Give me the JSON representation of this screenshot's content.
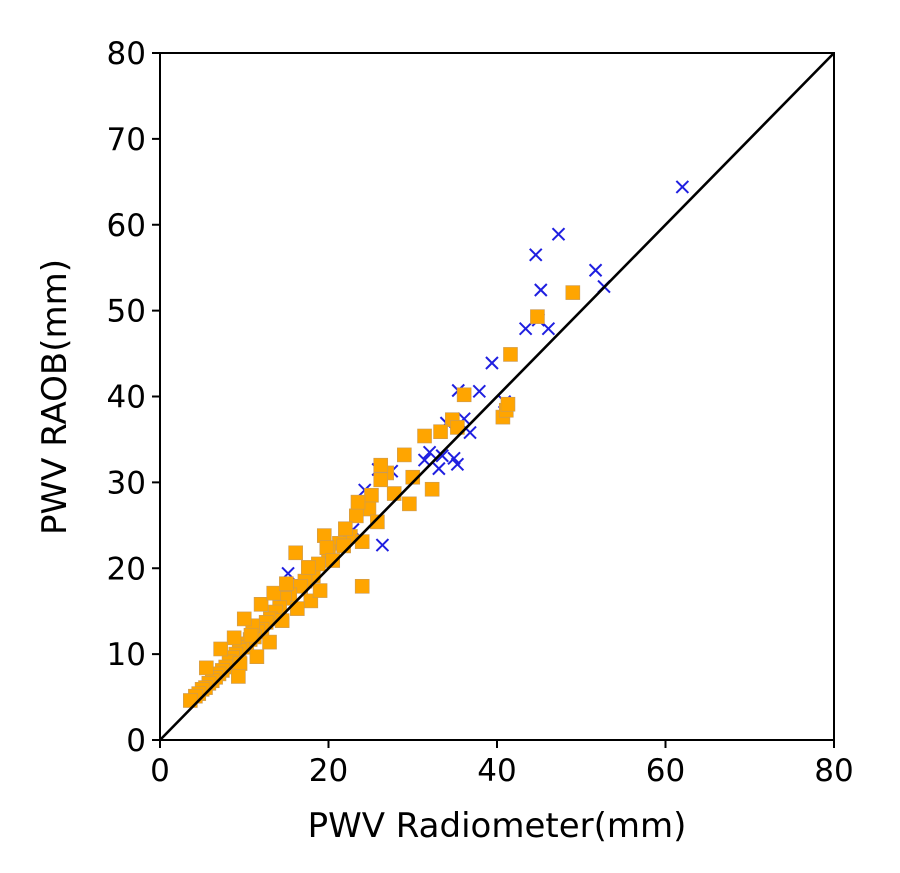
{
  "chart_data": {
    "type": "scatter",
    "title": "",
    "xlabel": "PWV Radiometer(mm)",
    "ylabel": "PWV RAOB(mm)",
    "xlim": [
      0,
      80
    ],
    "ylim": [
      0,
      80
    ],
    "xticks": [
      0,
      20,
      40,
      60,
      80
    ],
    "yticks": [
      0,
      10,
      20,
      30,
      40,
      50,
      60,
      70,
      80
    ],
    "xtick_labels": [
      "0",
      "20",
      "40",
      "60",
      "80"
    ],
    "ytick_labels": [
      "0",
      "10",
      "20",
      "30",
      "40",
      "50",
      "60",
      "70",
      "80"
    ],
    "grid": false,
    "legend": false,
    "reference_line": {
      "x": [
        0,
        80
      ],
      "y": [
        0,
        80
      ],
      "color": "#000000"
    },
    "series": [
      {
        "marker": "x",
        "color": "#1f1fe0",
        "x": [
          62.0,
          47.3,
          44.6,
          45.2,
          51.7,
          52.7,
          46.1,
          43.4,
          44.9,
          39.4,
          37.9,
          35.4,
          36.1,
          34.0,
          36.8,
          33.5,
          32.0,
          34.9,
          35.3,
          33.1,
          31.4,
          40.9,
          24.3,
          25.9,
          15.2,
          27.5,
          22.9,
          26.4
        ],
        "y": [
          64.4,
          58.9,
          56.5,
          52.4,
          54.7,
          52.8,
          47.9,
          47.9,
          48.9,
          43.9,
          40.6,
          40.7,
          37.4,
          36.9,
          35.8,
          33.1,
          33.5,
          32.8,
          32.1,
          31.6,
          32.6,
          39.4,
          29.1,
          31.5,
          19.4,
          31.3,
          24.5,
          22.7
        ]
      },
      {
        "marker": "s",
        "color": "#ffa500",
        "x": [
          49.0,
          44.8,
          41.6,
          36.1,
          40.7,
          41.1,
          41.3,
          34.7,
          35.3,
          33.3,
          31.4,
          32.3,
          29.0,
          30.0,
          29.6,
          27.8,
          26.9,
          26.2,
          25.1,
          24.8,
          23.3,
          22.6,
          21.3,
          20.0,
          19.5,
          18.2,
          18.8,
          17.2,
          16.7,
          16.1,
          24.0,
          15.4,
          14.8,
          14.2,
          13.7,
          13.1,
          12.6,
          12.1,
          11.6,
          11.2,
          10.7,
          10.3,
          9.8,
          9.4,
          9.0,
          8.6,
          8.2,
          7.8,
          7.4,
          7.0,
          6.6,
          6.2,
          5.8,
          5.4,
          5.0,
          4.6,
          4.2,
          3.6,
          12.0,
          13.5,
          15.0,
          11.0,
          10.0,
          8.8,
          17.6,
          19.8,
          21.8,
          23.5,
          25.8,
          22.0,
          20.5,
          17.9,
          16.3,
          14.5,
          13.0,
          11.5,
          9.5,
          7.2,
          5.5,
          9.3,
          26.2,
          24.0,
          19.0,
          10.8
        ],
        "y": [
          52.1,
          49.3,
          44.9,
          40.2,
          37.6,
          38.4,
          39.1,
          37.3,
          36.4,
          35.9,
          35.4,
          29.2,
          33.2,
          30.6,
          27.5,
          28.7,
          31.1,
          30.3,
          28.5,
          26.9,
          26.1,
          23.7,
          22.9,
          21.9,
          23.8,
          19.1,
          20.5,
          18.5,
          17.9,
          21.8,
          17.9,
          16.9,
          16.5,
          15.4,
          14.9,
          14.1,
          13.7,
          12.9,
          12.6,
          12.0,
          11.7,
          11.2,
          10.8,
          10.4,
          10.0,
          9.6,
          9.1,
          8.5,
          8.1,
          7.7,
          7.3,
          6.9,
          6.6,
          6.1,
          5.9,
          5.4,
          5.1,
          4.6,
          15.8,
          17.1,
          18.2,
          13.3,
          14.1,
          11.9,
          20.1,
          22.4,
          22.6,
          27.7,
          25.4,
          24.6,
          20.9,
          16.2,
          15.3,
          13.9,
          11.4,
          9.7,
          8.9,
          10.6,
          8.4,
          7.4,
          32.0,
          23.1,
          17.4,
          12.2
        ]
      }
    ]
  }
}
